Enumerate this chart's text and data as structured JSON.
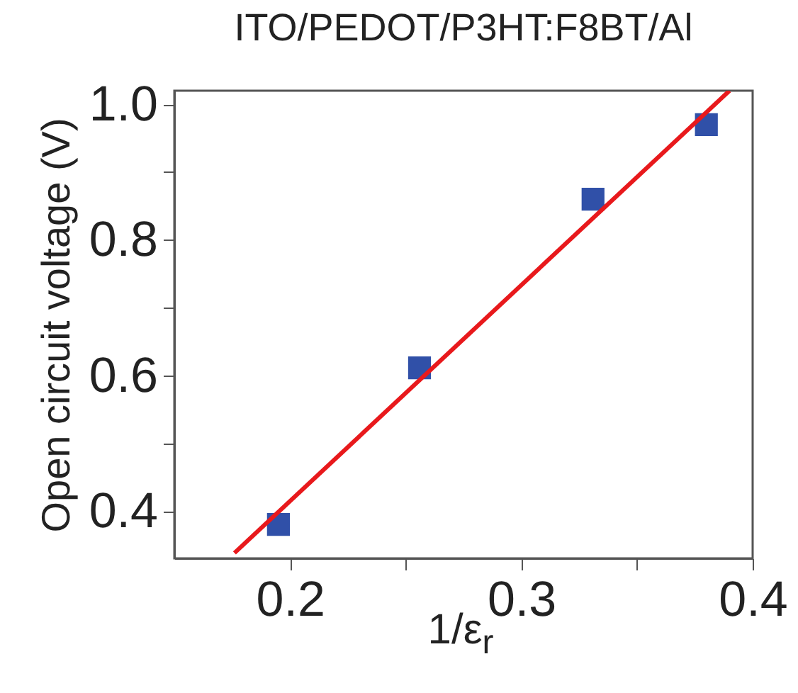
{
  "chart_data": {
    "type": "scatter",
    "title": "ITO/PEDOT/P3HT:F8BT/Al",
    "xlabel": "1/ε$_{r}$",
    "ylabel": "Open circuit voltage (V)",
    "series": [
      {
        "color": "#3050a8",
        "marker": "square",
        "x": [
          0.195,
          0.256,
          0.331,
          0.38
        ],
        "values": [
          0.38,
          0.611,
          0.86,
          0.97
        ]
      },
      {
        "type": "line",
        "color": "#e8191c",
        "line_style": "solid",
        "x": [
          0.176,
          0.39
        ],
        "values": [
          0.338,
          1.02
        ]
      }
    ],
    "xlim": [
      0.15,
      0.4
    ],
    "xticks": [
      0.2,
      {
        "value": 0.25,
        "label": null
      },
      0.3,
      {
        "value": 0.35,
        "label": null
      },
      0.4
    ],
    "ylim": [
      0.33,
      1.02
    ],
    "yticks": [
      0.4,
      {
        "value": 0.5,
        "label": null
      },
      0.6,
      {
        "value": 0.7,
        "label": null
      },
      0.8,
      {
        "value": 0.9,
        "label": null
      },
      {
        "value": 1.0,
        "label": "1.0"
      }
    ],
    "grid": false
  }
}
